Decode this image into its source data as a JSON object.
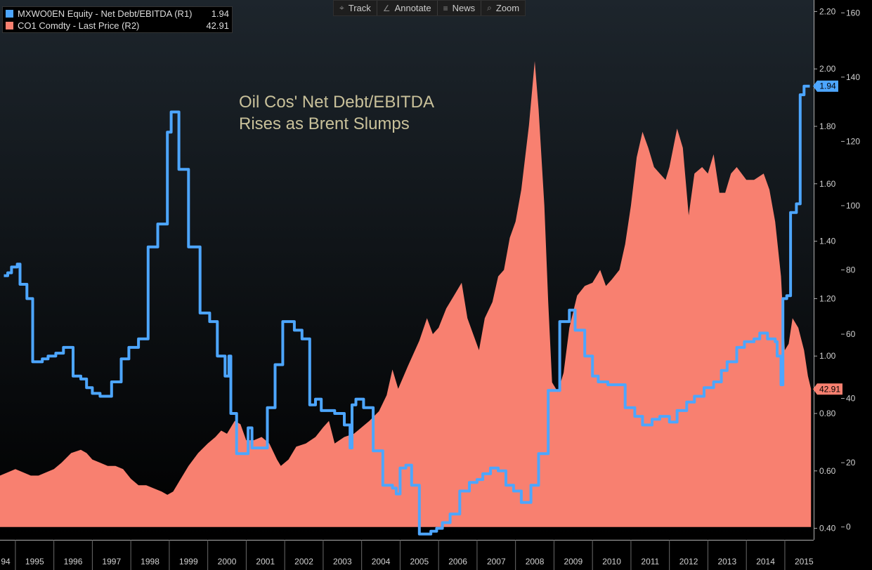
{
  "toolbar": {
    "buttons": [
      {
        "label": "Track",
        "icon": "crosshair-icon",
        "glyph": "⌖"
      },
      {
        "label": "Annotate",
        "icon": "pen-icon",
        "glyph": "∠"
      },
      {
        "label": "News",
        "icon": "news-icon",
        "glyph": "≡"
      },
      {
        "label": "Zoom",
        "icon": "magnifier-icon",
        "glyph": "⌕"
      }
    ]
  },
  "legend": {
    "entries": [
      {
        "name": "MXWO0EN Equity - Net Debt/EBITDA (R1)",
        "value": "1.94",
        "color": "#4da6ff"
      },
      {
        "name": "CO1 Comdty - Last Price (R2)",
        "value": "42.91",
        "color": "#f88070"
      }
    ]
  },
  "chart_data": {
    "type": "line+area",
    "annotation": [
      "Oil Cos' Net Debt/EBITDA",
      "Rises as Brent Slumps"
    ],
    "x_ticks": [
      "94",
      "1995",
      "1996",
      "1997",
      "1998",
      "1999",
      "2000",
      "2001",
      "2002",
      "2003",
      "2004",
      "2005",
      "2006",
      "2007",
      "2008",
      "2009",
      "2010",
      "2011",
      "2012",
      "2013",
      "2014",
      "2015"
    ],
    "x_range": [
      1994.6,
      2015.75
    ],
    "r1_axis": {
      "range": [
        0.36,
        2.24
      ],
      "ticks": [
        "0.40",
        "0.60",
        "0.80",
        "1.00",
        "1.20",
        "1.40",
        "1.60",
        "1.80",
        "2.00",
        "2.20"
      ]
    },
    "r2_axis": {
      "range": [
        -4,
        164
      ],
      "ticks": [
        "0",
        "20",
        "40",
        "60",
        "80",
        "100",
        "120",
        "140",
        "160"
      ]
    },
    "last_value_labels": {
      "r1": "1.94",
      "r2": "42.91"
    },
    "series": [
      {
        "name": "MXWO0EN Equity - Net Debt/EBITDA (R1)",
        "axis": "R1",
        "style": "step-line",
        "color": "#4da6ff",
        "points": [
          [
            1994.7,
            1.28
          ],
          [
            1994.8,
            1.29
          ],
          [
            1994.9,
            1.31
          ],
          [
            1995.05,
            1.32
          ],
          [
            1995.12,
            1.25
          ],
          [
            1995.3,
            1.2
          ],
          [
            1995.45,
            0.98
          ],
          [
            1995.7,
            0.99
          ],
          [
            1995.85,
            1.0
          ],
          [
            1996.05,
            1.01
          ],
          [
            1996.25,
            1.03
          ],
          [
            1996.5,
            0.93
          ],
          [
            1996.7,
            0.92
          ],
          [
            1996.85,
            0.89
          ],
          [
            1997.0,
            0.87
          ],
          [
            1997.2,
            0.86
          ],
          [
            1997.5,
            0.91
          ],
          [
            1997.75,
            0.99
          ],
          [
            1997.95,
            1.03
          ],
          [
            1998.2,
            1.06
          ],
          [
            1998.45,
            1.38
          ],
          [
            1998.7,
            1.46
          ],
          [
            1998.95,
            1.78
          ],
          [
            1999.05,
            1.85
          ],
          [
            1999.25,
            1.65
          ],
          [
            1999.5,
            1.38
          ],
          [
            1999.8,
            1.15
          ],
          [
            2000.05,
            1.12
          ],
          [
            2000.25,
            1.0
          ],
          [
            2000.45,
            0.93
          ],
          [
            2000.55,
            1.0
          ],
          [
            2000.6,
            0.8
          ],
          [
            2000.75,
            0.66
          ],
          [
            2001.0,
            0.66
          ],
          [
            2001.05,
            0.75
          ],
          [
            2001.15,
            0.68
          ],
          [
            2001.4,
            0.68
          ],
          [
            2001.55,
            0.82
          ],
          [
            2001.75,
            0.97
          ],
          [
            2001.95,
            1.12
          ],
          [
            2002.25,
            1.09
          ],
          [
            2002.45,
            1.06
          ],
          [
            2002.65,
            0.83
          ],
          [
            2002.8,
            0.85
          ],
          [
            2002.95,
            0.81
          ],
          [
            2003.3,
            0.8
          ],
          [
            2003.55,
            0.76
          ],
          [
            2003.7,
            0.68
          ],
          [
            2003.75,
            0.83
          ],
          [
            2003.85,
            0.85
          ],
          [
            2004.05,
            0.82
          ],
          [
            2004.3,
            0.67
          ],
          [
            2004.55,
            0.55
          ],
          [
            2004.8,
            0.54
          ],
          [
            2004.9,
            0.52
          ],
          [
            2005.0,
            0.61
          ],
          [
            2005.15,
            0.62
          ],
          [
            2005.3,
            0.55
          ],
          [
            2005.5,
            0.38
          ],
          [
            2005.8,
            0.39
          ],
          [
            2005.95,
            0.4
          ],
          [
            2006.1,
            0.42
          ],
          [
            2006.3,
            0.45
          ],
          [
            2006.55,
            0.53
          ],
          [
            2006.8,
            0.56
          ],
          [
            2007.0,
            0.57
          ],
          [
            2007.15,
            0.59
          ],
          [
            2007.35,
            0.61
          ],
          [
            2007.55,
            0.6
          ],
          [
            2007.75,
            0.55
          ],
          [
            2007.95,
            0.53
          ],
          [
            2008.15,
            0.49
          ],
          [
            2008.4,
            0.55
          ],
          [
            2008.6,
            0.66
          ],
          [
            2008.85,
            0.88
          ],
          [
            2009.15,
            1.12
          ],
          [
            2009.4,
            1.16
          ],
          [
            2009.55,
            1.09
          ],
          [
            2009.8,
            1.0
          ],
          [
            2010.0,
            0.93
          ],
          [
            2010.15,
            0.91
          ],
          [
            2010.4,
            0.9
          ],
          [
            2010.75,
            0.9
          ],
          [
            2010.85,
            0.82
          ],
          [
            2011.1,
            0.79
          ],
          [
            2011.3,
            0.76
          ],
          [
            2011.55,
            0.78
          ],
          [
            2011.75,
            0.79
          ],
          [
            2012.0,
            0.77
          ],
          [
            2012.2,
            0.81
          ],
          [
            2012.45,
            0.84
          ],
          [
            2012.65,
            0.86
          ],
          [
            2012.9,
            0.89
          ],
          [
            2013.15,
            0.91
          ],
          [
            2013.35,
            0.95
          ],
          [
            2013.5,
            0.98
          ],
          [
            2013.75,
            1.03
          ],
          [
            2013.95,
            1.05
          ],
          [
            2014.2,
            1.06
          ],
          [
            2014.35,
            1.08
          ],
          [
            2014.55,
            1.06
          ],
          [
            2014.75,
            1.05
          ],
          [
            2014.8,
            1.0
          ],
          [
            2014.9,
            0.9
          ],
          [
            2014.95,
            1.2
          ],
          [
            2015.05,
            1.21
          ],
          [
            2015.15,
            1.5
          ],
          [
            2015.3,
            1.53
          ],
          [
            2015.4,
            1.91
          ],
          [
            2015.5,
            1.94
          ],
          [
            2015.65,
            1.94
          ]
        ]
      },
      {
        "name": "CO1 Comdty - Last Price (R2)",
        "axis": "R2",
        "style": "area",
        "color": "#f88070",
        "points": [
          [
            1994.6,
            16
          ],
          [
            1994.8,
            17
          ],
          [
            1995.0,
            18
          ],
          [
            1995.2,
            17
          ],
          [
            1995.4,
            16
          ],
          [
            1995.6,
            16
          ],
          [
            1995.8,
            17
          ],
          [
            1996.0,
            18
          ],
          [
            1996.2,
            20
          ],
          [
            1996.45,
            23
          ],
          [
            1996.7,
            24
          ],
          [
            1996.85,
            23
          ],
          [
            1997.0,
            21
          ],
          [
            1997.2,
            20
          ],
          [
            1997.4,
            19
          ],
          [
            1997.6,
            19
          ],
          [
            1997.8,
            18
          ],
          [
            1998.0,
            15
          ],
          [
            1998.2,
            13
          ],
          [
            1998.4,
            13
          ],
          [
            1998.6,
            12
          ],
          [
            1998.8,
            11
          ],
          [
            1998.95,
            10
          ],
          [
            1999.1,
            11
          ],
          [
            1999.3,
            15
          ],
          [
            1999.5,
            19
          ],
          [
            1999.75,
            23
          ],
          [
            2000.0,
            26
          ],
          [
            2000.2,
            28
          ],
          [
            2000.35,
            30
          ],
          [
            2000.5,
            29
          ],
          [
            2000.7,
            33
          ],
          [
            2000.85,
            32
          ],
          [
            2001.0,
            27
          ],
          [
            2001.2,
            27
          ],
          [
            2001.4,
            28
          ],
          [
            2001.6,
            26
          ],
          [
            2001.8,
            21
          ],
          [
            2001.9,
            19
          ],
          [
            2002.1,
            21
          ],
          [
            2002.3,
            25
          ],
          [
            2002.55,
            26
          ],
          [
            2002.8,
            28
          ],
          [
            2003.0,
            31
          ],
          [
            2003.15,
            33
          ],
          [
            2003.3,
            26
          ],
          [
            2003.55,
            28
          ],
          [
            2003.8,
            29
          ],
          [
            2004.0,
            31
          ],
          [
            2004.2,
            33
          ],
          [
            2004.45,
            36
          ],
          [
            2004.65,
            41
          ],
          [
            2004.8,
            49
          ],
          [
            2004.95,
            43
          ],
          [
            2005.2,
            50
          ],
          [
            2005.5,
            58
          ],
          [
            2005.7,
            65
          ],
          [
            2005.85,
            60
          ],
          [
            2006.0,
            62
          ],
          [
            2006.2,
            68
          ],
          [
            2006.4,
            72
          ],
          [
            2006.6,
            76
          ],
          [
            2006.75,
            65
          ],
          [
            2006.9,
            60
          ],
          [
            2007.05,
            55
          ],
          [
            2007.2,
            65
          ],
          [
            2007.4,
            70
          ],
          [
            2007.55,
            78
          ],
          [
            2007.7,
            80
          ],
          [
            2007.85,
            90
          ],
          [
            2008.0,
            95
          ],
          [
            2008.15,
            105
          ],
          [
            2008.35,
            125
          ],
          [
            2008.5,
            145
          ],
          [
            2008.6,
            130
          ],
          [
            2008.75,
            100
          ],
          [
            2008.85,
            70
          ],
          [
            2008.95,
            45
          ],
          [
            2009.1,
            42
          ],
          [
            2009.25,
            48
          ],
          [
            2009.4,
            62
          ],
          [
            2009.6,
            72
          ],
          [
            2009.8,
            75
          ],
          [
            2010.0,
            76
          ],
          [
            2010.2,
            80
          ],
          [
            2010.35,
            75
          ],
          [
            2010.5,
            77
          ],
          [
            2010.7,
            80
          ],
          [
            2010.85,
            88
          ],
          [
            2011.0,
            100
          ],
          [
            2011.15,
            115
          ],
          [
            2011.3,
            123
          ],
          [
            2011.45,
            118
          ],
          [
            2011.6,
            112
          ],
          [
            2011.75,
            110
          ],
          [
            2011.9,
            108
          ],
          [
            2012.0,
            112
          ],
          [
            2012.2,
            124
          ],
          [
            2012.35,
            118
          ],
          [
            2012.5,
            97
          ],
          [
            2012.65,
            110
          ],
          [
            2012.85,
            112
          ],
          [
            2013.0,
            110
          ],
          [
            2013.15,
            116
          ],
          [
            2013.3,
            104
          ],
          [
            2013.45,
            104
          ],
          [
            2013.6,
            110
          ],
          [
            2013.75,
            112
          ],
          [
            2014.0,
            108
          ],
          [
            2014.2,
            108
          ],
          [
            2014.45,
            110
          ],
          [
            2014.6,
            105
          ],
          [
            2014.75,
            95
          ],
          [
            2014.9,
            78
          ],
          [
            2015.0,
            55
          ],
          [
            2015.1,
            57
          ],
          [
            2015.2,
            65
          ],
          [
            2015.35,
            62
          ],
          [
            2015.5,
            55
          ],
          [
            2015.6,
            47
          ],
          [
            2015.68,
            43
          ]
        ]
      }
    ]
  }
}
